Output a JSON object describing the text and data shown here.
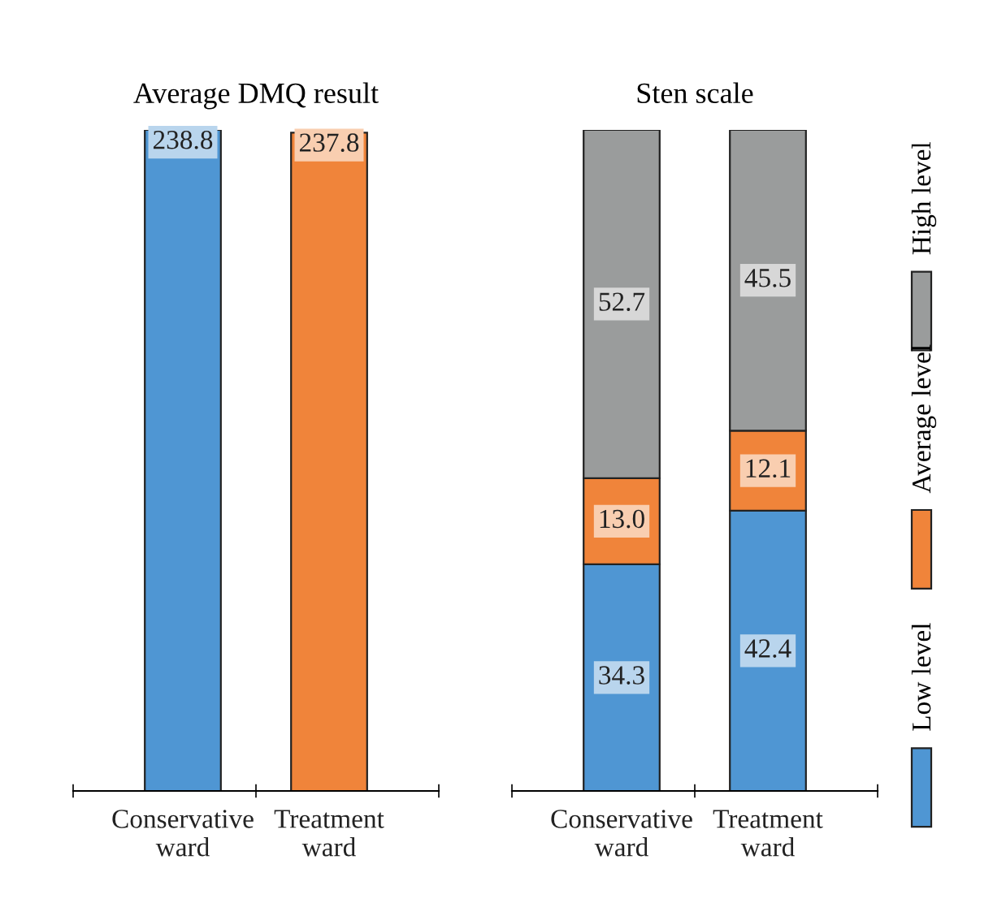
{
  "chart_data": [
    {
      "type": "bar",
      "title": "Average DMQ result",
      "categories": [
        "Conservative\nward",
        "Treatment\nward"
      ],
      "values": [
        238.8,
        237.8
      ],
      "value_labels": [
        "238.8",
        "237.8"
      ],
      "colors": [
        "#4f96d3",
        "#f0843a"
      ]
    },
    {
      "type": "bar",
      "title": "Sten scale",
      "categories": [
        "Conservative\nward",
        "Treatment\nward"
      ],
      "stacked": true,
      "legend": "right",
      "series": [
        {
          "name": "Low level",
          "color": "#4f96d3",
          "values": [
            34.3,
            42.4
          ],
          "value_labels": [
            "34.3",
            "42.4"
          ]
        },
        {
          "name": "Average level",
          "color": "#f0843a",
          "values": [
            13.0,
            12.1
          ],
          "value_labels": [
            "13.0",
            "12.1"
          ]
        },
        {
          "name": "High level",
          "color": "#9a9c9c",
          "values": [
            52.7,
            45.5
          ],
          "value_labels": [
            "52.7",
            "45.5"
          ]
        }
      ]
    }
  ]
}
